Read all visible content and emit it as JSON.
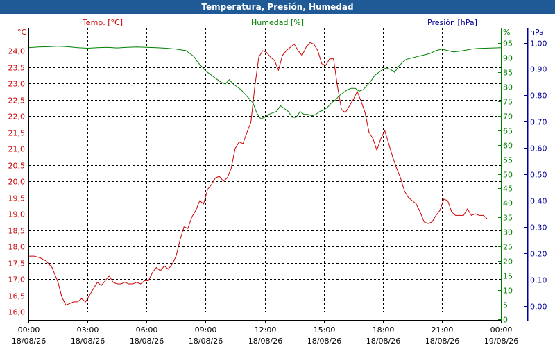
{
  "title": "Temperatura, Presión, Humedad",
  "colors": {
    "title_bar": "#1f5a96",
    "temperature": "#cc0000",
    "humidity": "#008000",
    "pressure": "#000099",
    "grid": "#000000"
  },
  "chart_data": {
    "type": "line",
    "title": "Temperatura, Presión, Humedad",
    "grid": true,
    "x_axis": {
      "range": [
        "18/08/26 00:00",
        "19/08/26 00:00"
      ],
      "ticks": [
        {
          "time": "00:00",
          "date": "18/08/26"
        },
        {
          "time": "03:00",
          "date": "18/08/26"
        },
        {
          "time": "06:00",
          "date": "18/08/26"
        },
        {
          "time": "09:00",
          "date": "18/08/26"
        },
        {
          "time": "12:00",
          "date": "18/08/26"
        },
        {
          "time": "15:00",
          "date": "18/08/26"
        },
        {
          "time": "18:00",
          "date": "18/08/26"
        },
        {
          "time": "21:00",
          "date": "18/08/26"
        },
        {
          "time": "00:00",
          "date": "19/08/26"
        }
      ]
    },
    "axes": {
      "temperature": {
        "label": "Temp. [°C]",
        "unit": "°C",
        "ylim": [
          15.8,
          24.6
        ],
        "ticks": [
          "16,0",
          "16,5",
          "17,0",
          "17,5",
          "18,0",
          "18,5",
          "19,0",
          "19,5",
          "20,0",
          "20,5",
          "21,0",
          "21,5",
          "22,0",
          "22,5",
          "23,0",
          "23,5",
          "24,0"
        ]
      },
      "humidity": {
        "label": "Humedad [%]",
        "unit": "%",
        "ylim": [
          0,
          100
        ],
        "ticks": [
          "0",
          "5",
          "10",
          "15",
          "20",
          "25",
          "30",
          "35",
          "40",
          "45",
          "50",
          "55",
          "60",
          "65",
          "70",
          "75",
          "80",
          "85",
          "90",
          "95"
        ]
      },
      "pressure": {
        "label": "Presión [hPa]",
        "unit": "hPa",
        "ylim": [
          -0.05,
          1.0
        ],
        "ticks": [
          "0,00",
          "0,10",
          "0,20",
          "0,30",
          "0,40",
          "0,50",
          "0,60",
          "0,70",
          "0,80",
          "0,90",
          "1,00"
        ]
      }
    },
    "series": [
      {
        "axis": "temperature",
        "points": [
          [
            0,
            17.7
          ],
          [
            0.3,
            17.7
          ],
          [
            0.6,
            17.65
          ],
          [
            0.9,
            17.55
          ],
          [
            1.2,
            17.35
          ],
          [
            1.5,
            16.9
          ],
          [
            1.7,
            16.45
          ],
          [
            1.9,
            16.2
          ],
          [
            2.1,
            16.25
          ],
          [
            2.3,
            16.3
          ],
          [
            2.5,
            16.3
          ],
          [
            2.7,
            16.4
          ],
          [
            2.9,
            16.3
          ],
          [
            3.1,
            16.5
          ],
          [
            3.3,
            16.7
          ],
          [
            3.5,
            16.9
          ],
          [
            3.7,
            16.8
          ],
          [
            3.9,
            16.95
          ],
          [
            4.1,
            17.1
          ],
          [
            4.3,
            16.9
          ],
          [
            4.5,
            16.85
          ],
          [
            4.7,
            16.85
          ],
          [
            4.9,
            16.9
          ],
          [
            5.1,
            16.85
          ],
          [
            5.3,
            16.85
          ],
          [
            5.5,
            16.9
          ],
          [
            5.7,
            16.85
          ],
          [
            5.9,
            16.95
          ],
          [
            6.1,
            16.95
          ],
          [
            6.3,
            17.2
          ],
          [
            6.5,
            17.35
          ],
          [
            6.7,
            17.25
          ],
          [
            6.9,
            17.4
          ],
          [
            7.1,
            17.3
          ],
          [
            7.3,
            17.45
          ],
          [
            7.5,
            17.7
          ],
          [
            7.7,
            18.2
          ],
          [
            7.9,
            18.6
          ],
          [
            8.1,
            18.55
          ],
          [
            8.3,
            18.9
          ],
          [
            8.5,
            19.1
          ],
          [
            8.7,
            19.4
          ],
          [
            8.9,
            19.3
          ],
          [
            9.1,
            19.75
          ],
          [
            9.3,
            19.9
          ],
          [
            9.5,
            20.1
          ],
          [
            9.7,
            20.15
          ],
          [
            9.9,
            20.0
          ],
          [
            10.1,
            20.1
          ],
          [
            10.3,
            20.4
          ],
          [
            10.5,
            21.0
          ],
          [
            10.7,
            21.2
          ],
          [
            10.9,
            21.15
          ],
          [
            11.1,
            21.5
          ],
          [
            11.3,
            21.8
          ],
          [
            11.5,
            22.9
          ],
          [
            11.7,
            23.8
          ],
          [
            11.9,
            24.0
          ],
          [
            12.1,
            23.95
          ],
          [
            12.3,
            23.8
          ],
          [
            12.5,
            23.7
          ],
          [
            12.7,
            23.4
          ],
          [
            12.9,
            23.85
          ],
          [
            13.1,
            24.0
          ],
          [
            13.3,
            24.1
          ],
          [
            13.5,
            24.2
          ],
          [
            13.7,
            24.0
          ],
          [
            13.9,
            23.85
          ],
          [
            14.1,
            24.1
          ],
          [
            14.3,
            24.25
          ],
          [
            14.5,
            24.2
          ],
          [
            14.7,
            24.0
          ],
          [
            14.9,
            23.6
          ],
          [
            15.1,
            23.55
          ],
          [
            15.3,
            23.75
          ],
          [
            15.5,
            23.75
          ],
          [
            15.7,
            22.9
          ],
          [
            15.9,
            22.2
          ],
          [
            16.1,
            22.1
          ],
          [
            16.3,
            22.3
          ],
          [
            16.5,
            22.5
          ],
          [
            16.7,
            22.75
          ],
          [
            16.9,
            22.45
          ],
          [
            17.1,
            22.1
          ],
          [
            17.3,
            21.5
          ],
          [
            17.5,
            21.3
          ],
          [
            17.7,
            20.95
          ],
          [
            17.9,
            21.3
          ],
          [
            18.1,
            21.55
          ],
          [
            18.3,
            21.15
          ],
          [
            18.5,
            20.75
          ],
          [
            18.7,
            20.4
          ],
          [
            18.9,
            20.1
          ],
          [
            19.1,
            19.7
          ],
          [
            19.3,
            19.5
          ],
          [
            19.5,
            19.4
          ],
          [
            19.7,
            19.3
          ],
          [
            19.9,
            19.05
          ],
          [
            20.1,
            18.75
          ],
          [
            20.3,
            18.7
          ],
          [
            20.5,
            18.75
          ],
          [
            20.7,
            18.95
          ],
          [
            20.9,
            19.1
          ],
          [
            21.1,
            19.45
          ],
          [
            21.3,
            19.4
          ],
          [
            21.5,
            19.05
          ],
          [
            21.7,
            18.95
          ],
          [
            21.9,
            18.95
          ],
          [
            22.1,
            18.95
          ],
          [
            22.3,
            19.15
          ],
          [
            22.5,
            18.95
          ],
          [
            22.7,
            19.0
          ],
          [
            22.9,
            18.95
          ],
          [
            23.1,
            18.95
          ],
          [
            23.3,
            18.85
          ]
        ]
      },
      {
        "axis": "humidity",
        "points": [
          [
            0,
            93.5
          ],
          [
            0.5,
            93.7
          ],
          [
            1.0,
            93.8
          ],
          [
            1.5,
            94.0
          ],
          [
            2.0,
            93.8
          ],
          [
            2.5,
            93.5
          ],
          [
            3.0,
            93.3
          ],
          [
            3.5,
            93.5
          ],
          [
            4.0,
            93.6
          ],
          [
            4.5,
            93.4
          ],
          [
            5.0,
            93.6
          ],
          [
            5.5,
            93.7
          ],
          [
            6.0,
            93.6
          ],
          [
            6.5,
            93.5
          ],
          [
            7.0,
            93.3
          ],
          [
            7.5,
            93.0
          ],
          [
            8.0,
            92.5
          ],
          [
            8.2,
            91.5
          ],
          [
            8.4,
            90.5
          ],
          [
            8.6,
            88.5
          ],
          [
            8.8,
            87.0
          ],
          [
            9.0,
            85.5
          ],
          [
            9.2,
            84.5
          ],
          [
            9.4,
            83.5
          ],
          [
            9.6,
            82.5
          ],
          [
            9.8,
            81.5
          ],
          [
            10.0,
            81.0
          ],
          [
            10.2,
            82.5
          ],
          [
            10.4,
            81.0
          ],
          [
            10.6,
            80.0
          ],
          [
            10.8,
            79.0
          ],
          [
            11.0,
            77.5
          ],
          [
            11.2,
            76.0
          ],
          [
            11.4,
            74.5
          ],
          [
            11.6,
            71.0
          ],
          [
            11.8,
            69.0
          ],
          [
            12.0,
            69.5
          ],
          [
            12.2,
            70.5
          ],
          [
            12.4,
            71.0
          ],
          [
            12.6,
            71.5
          ],
          [
            12.8,
            73.5
          ],
          [
            13.0,
            72.5
          ],
          [
            13.2,
            71.5
          ],
          [
            13.4,
            69.5
          ],
          [
            13.6,
            69.5
          ],
          [
            13.8,
            71.5
          ],
          [
            14.0,
            70.5
          ],
          [
            14.2,
            70.5
          ],
          [
            14.4,
            70.0
          ],
          [
            14.6,
            70.5
          ],
          [
            14.8,
            71.5
          ],
          [
            15.0,
            72.0
          ],
          [
            15.2,
            73.0
          ],
          [
            15.4,
            74.5
          ],
          [
            15.6,
            75.5
          ],
          [
            15.8,
            77.0
          ],
          [
            16.0,
            78.0
          ],
          [
            16.2,
            79.0
          ],
          [
            16.4,
            79.5
          ],
          [
            16.6,
            79.5
          ],
          [
            16.8,
            78.5
          ],
          [
            17.0,
            79.0
          ],
          [
            17.2,
            80.5
          ],
          [
            17.4,
            82.0
          ],
          [
            17.6,
            84.0
          ],
          [
            17.8,
            85.0
          ],
          [
            18.0,
            86.0
          ],
          [
            18.2,
            86.5
          ],
          [
            18.4,
            86.0
          ],
          [
            18.6,
            85.0
          ],
          [
            18.8,
            87.0
          ],
          [
            19.0,
            88.5
          ],
          [
            19.2,
            89.5
          ],
          [
            19.5,
            90.0
          ],
          [
            19.8,
            90.5
          ],
          [
            20.1,
            91.0
          ],
          [
            20.4,
            91.5
          ],
          [
            20.7,
            92.5
          ],
          [
            21.0,
            93.0
          ],
          [
            21.3,
            92.5
          ],
          [
            21.6,
            92.0
          ],
          [
            21.9,
            92.3
          ],
          [
            22.2,
            92.6
          ],
          [
            22.5,
            93.0
          ],
          [
            22.8,
            93.2
          ],
          [
            23.2,
            93.3
          ],
          [
            23.6,
            93.4
          ],
          [
            24.0,
            93.5
          ]
        ]
      }
    ]
  }
}
